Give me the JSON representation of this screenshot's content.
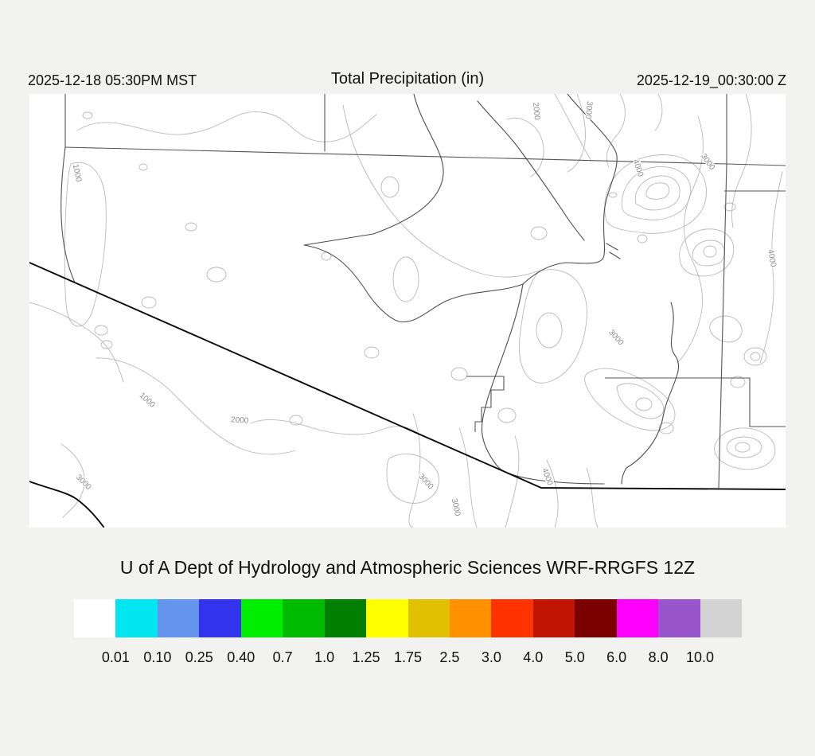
{
  "header": {
    "left_timestamp": "2025-12-18 05:30PM MST",
    "title": "Total Precipitation (in)",
    "right_timestamp": "2025-12-19_00:30:00 Z"
  },
  "footer": {
    "title": "U of A Dept of Hydrology and Atmospheric Sciences WRF-RRGFS 12Z"
  },
  "map": {
    "description": "Topographic contour base map of Arizona region with state borders and Mexico border",
    "contour_labels": [
      "1000",
      "1000",
      "2000",
      "2000",
      "3000",
      "4000",
      "3000",
      "4000",
      "3000",
      "3000",
      "3000",
      "3000",
      "4000"
    ]
  },
  "legend": {
    "colors": [
      "#FFFFFF",
      "#00E5EE",
      "#6495ED",
      "#3333EE",
      "#00EE00",
      "#00BB00",
      "#007F00",
      "#FFFF00",
      "#E0C000",
      "#FF9100",
      "#FF3300",
      "#C01500",
      "#7D0000",
      "#FF00FF",
      "#9955CC",
      "#D3D3D3"
    ],
    "labels": [
      "0.01",
      "0.10",
      "0.25",
      "0.40",
      "0.7",
      "1.0",
      "1.25",
      "1.75",
      "2.5",
      "3.0",
      "4.0",
      "5.0",
      "6.0",
      "8.0",
      "10.0"
    ]
  }
}
